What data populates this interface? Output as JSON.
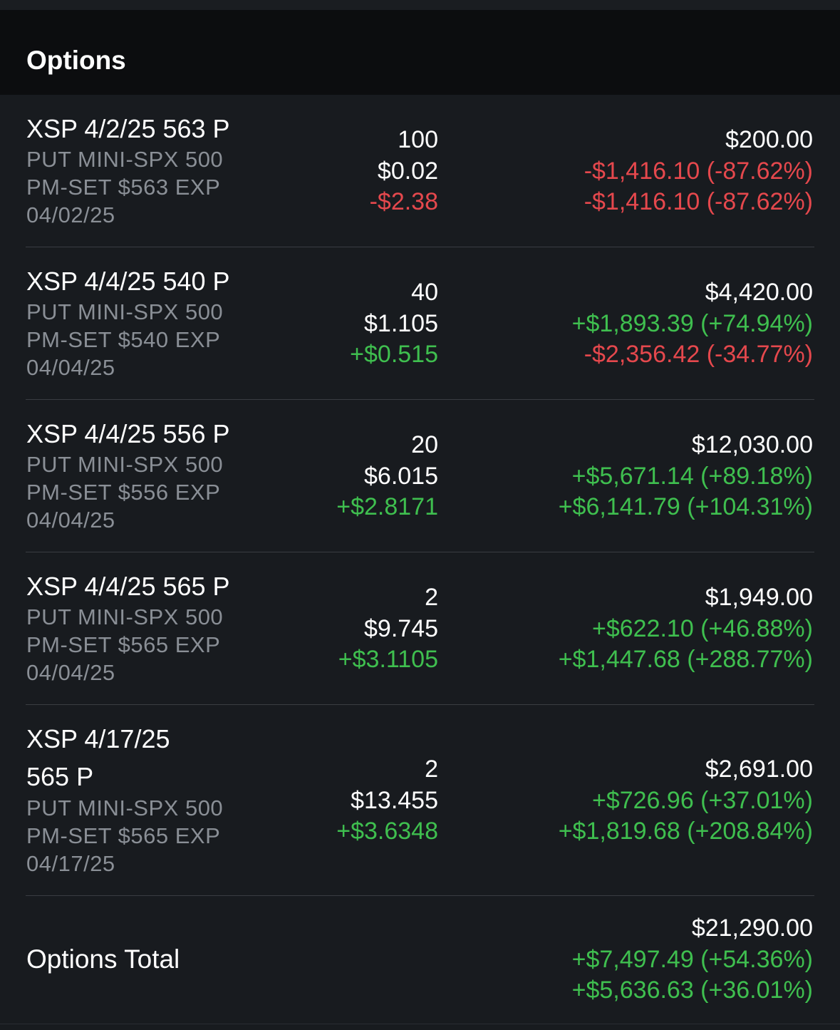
{
  "section": {
    "title": "Options"
  },
  "positions": [
    {
      "symbol": "XSP 4/2/25 563 P",
      "description": "PUT MINI-SPX 500\nPM-SET $563 EXP\n04/02/25",
      "quantity": "100",
      "price": "$0.02",
      "price_change": "-$2.38",
      "price_change_color": "red",
      "market_value": "$200.00",
      "day_gain": "-$1,416.10 (-87.62%)",
      "day_gain_color": "red",
      "total_gain": "-$1,416.10 (-87.62%)",
      "total_gain_color": "red"
    },
    {
      "symbol": "XSP 4/4/25 540 P",
      "description": "PUT MINI-SPX 500\nPM-SET $540 EXP\n04/04/25",
      "quantity": "40",
      "price": "$1.105",
      "price_change": "+$0.515",
      "price_change_color": "green",
      "market_value": "$4,420.00",
      "day_gain": "+$1,893.39 (+74.94%)",
      "day_gain_color": "green",
      "total_gain": "-$2,356.42 (-34.77%)",
      "total_gain_color": "red"
    },
    {
      "symbol": "XSP 4/4/25 556 P",
      "description": "PUT MINI-SPX 500\nPM-SET $556 EXP\n04/04/25",
      "quantity": "20",
      "price": "$6.015",
      "price_change": "+$2.8171",
      "price_change_color": "green",
      "market_value": "$12,030.00",
      "day_gain": "+$5,671.14 (+89.18%)",
      "day_gain_color": "green",
      "total_gain": "+$6,141.79 (+104.31%)",
      "total_gain_color": "green"
    },
    {
      "symbol": "XSP 4/4/25 565 P",
      "description": "PUT MINI-SPX 500\nPM-SET $565 EXP\n04/04/25",
      "quantity": "2",
      "price": "$9.745",
      "price_change": "+$3.1105",
      "price_change_color": "green",
      "market_value": "$1,949.00",
      "day_gain": "+$622.10 (+46.88%)",
      "day_gain_color": "green",
      "total_gain": "+$1,447.68 (+288.77%)",
      "total_gain_color": "green"
    },
    {
      "symbol_line1": "XSP 4/17/25",
      "symbol_line2": "565 P",
      "description": "PUT MINI-SPX 500\nPM-SET $565 EXP\n04/17/25",
      "quantity": "2",
      "price": "$13.455",
      "price_change": "+$3.6348",
      "price_change_color": "green",
      "market_value": "$2,691.00",
      "day_gain": "+$726.96 (+37.01%)",
      "day_gain_color": "green",
      "total_gain": "+$1,819.68 (+208.84%)",
      "total_gain_color": "green"
    }
  ],
  "total": {
    "label": "Options Total",
    "market_value": "$21,290.00",
    "day_gain": "+$7,497.49 (+54.36%)",
    "day_gain_color": "green",
    "total_gain": "+$5,636.63 (+36.01%)",
    "total_gain_color": "green"
  },
  "colors": {
    "background": "#181b1f",
    "header_background": "#0c0d0f",
    "gain": "#3fbf4f",
    "loss": "#e5484d",
    "secondary_text": "#8a8f96"
  }
}
